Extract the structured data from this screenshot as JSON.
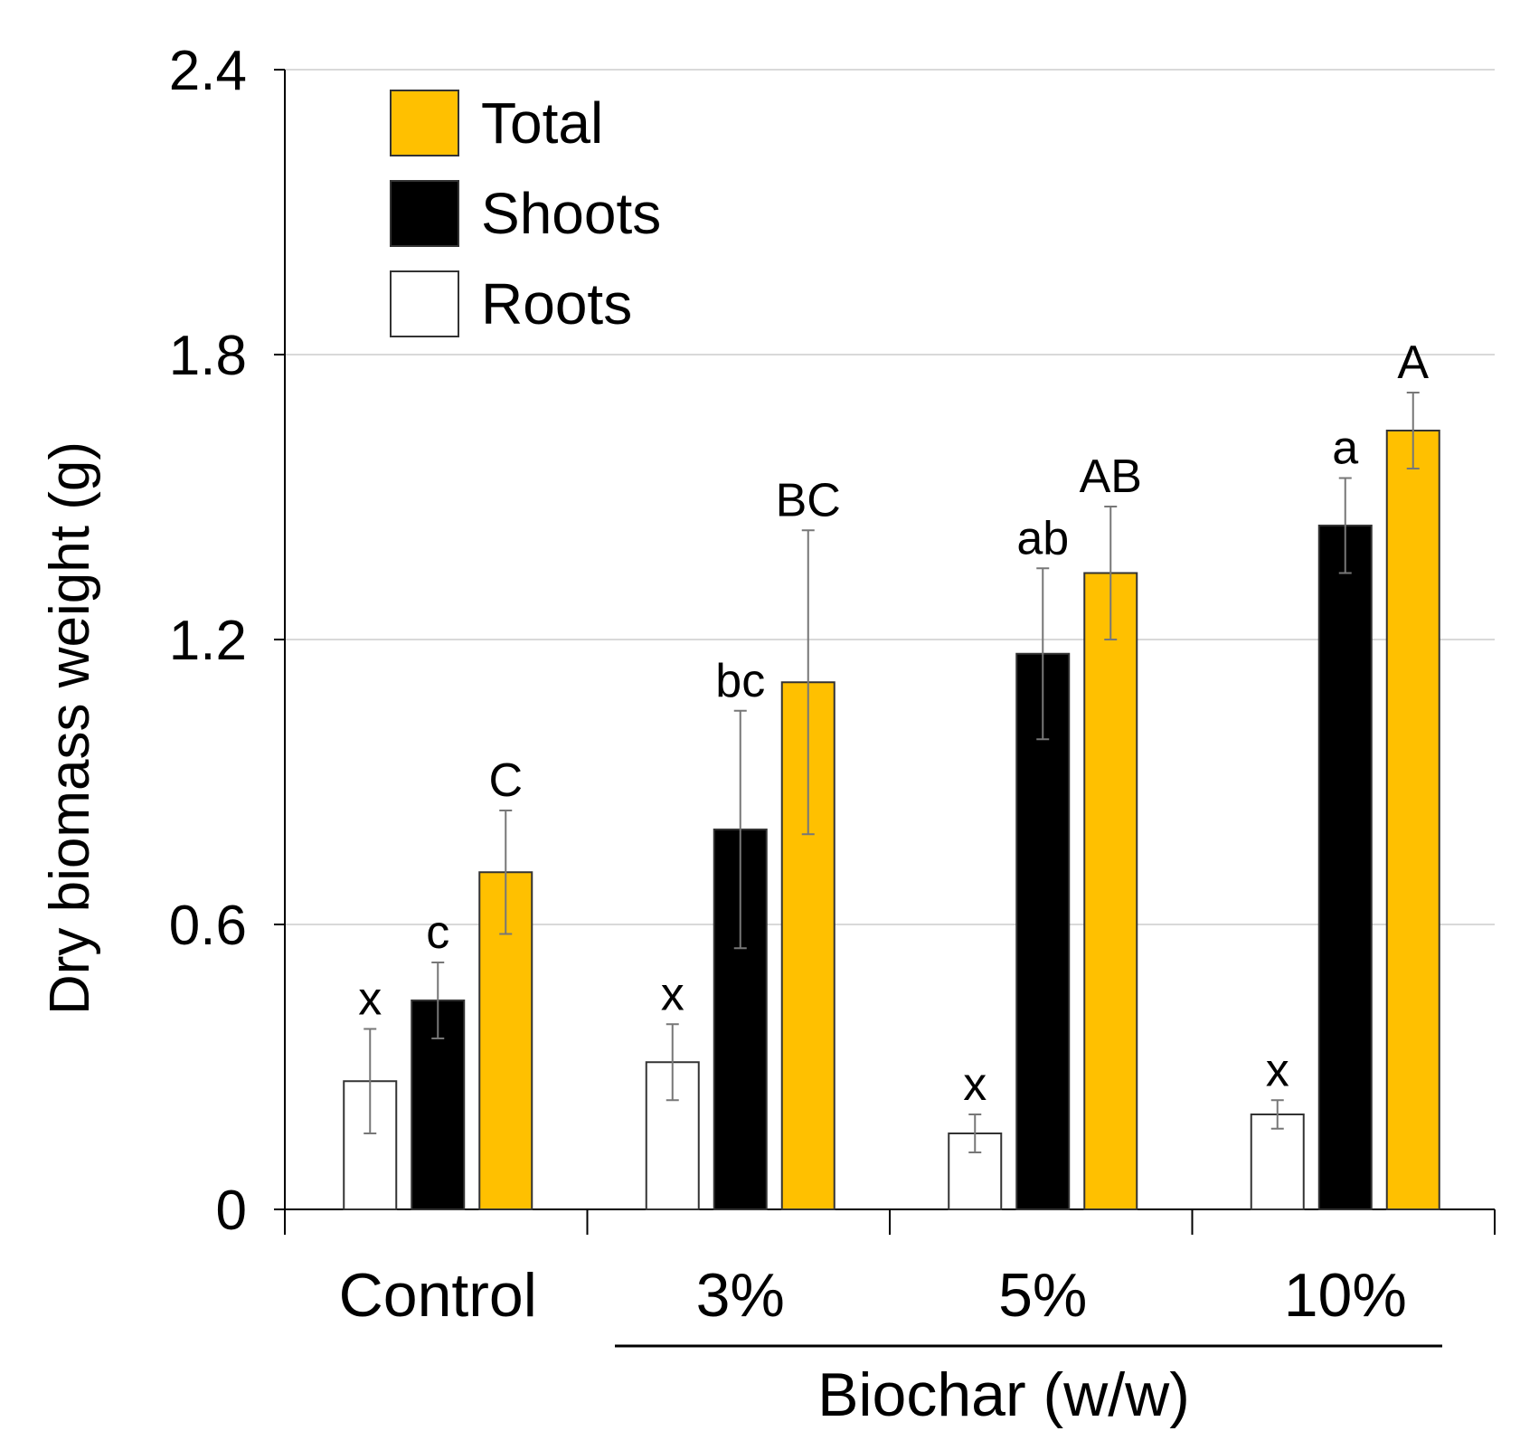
{
  "chart_data": {
    "type": "bar",
    "title": "",
    "ylabel": "Dry biomass weight (g)",
    "xlabel": "Biochar (w/w)",
    "ylim": [
      0,
      2.4
    ],
    "yticks": [
      "0",
      "0.6",
      "1.2",
      "1.8",
      "2.4"
    ],
    "ytick_values": [
      0,
      0.6,
      1.2,
      1.8,
      2.4
    ],
    "grid": true,
    "legend_position": "top-left",
    "categories": [
      "Control",
      "3%",
      "5%",
      "10%"
    ],
    "series": [
      {
        "name": "Roots",
        "color": "#FFFFFF",
        "values": [
          0.27,
          0.31,
          0.16,
          0.2
        ],
        "errors": [
          0.11,
          0.08,
          0.04,
          0.03
        ],
        "letters": [
          "x",
          "x",
          "x",
          "x"
        ]
      },
      {
        "name": "Shoots",
        "color": "#000000",
        "values": [
          0.44,
          0.8,
          1.17,
          1.44
        ],
        "errors": [
          0.08,
          0.25,
          0.18,
          0.1
        ],
        "letters": [
          "c",
          "bc",
          "ab",
          "a"
        ]
      },
      {
        "name": "Total",
        "color": "#FFC000",
        "values": [
          0.71,
          1.11,
          1.34,
          1.64
        ],
        "errors": [
          0.13,
          0.32,
          0.14,
          0.08
        ],
        "letters": [
          "C",
          "BC",
          "AB",
          "A"
        ]
      }
    ],
    "legend_order": [
      "Total",
      "Shoots",
      "Roots"
    ]
  }
}
